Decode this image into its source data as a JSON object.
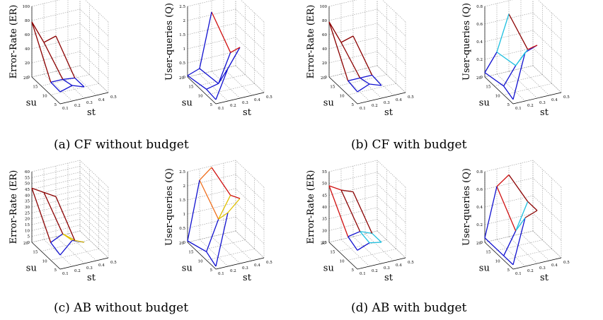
{
  "figure": {
    "captions": [
      "(a) CF without budget",
      "(b) CF with budget",
      "(c) AB without budget",
      "(d) AB with budget"
    ]
  },
  "chart_data": [
    {
      "type": "surface3d",
      "panel": "a",
      "metric": "er",
      "zlabel": "Error-Rate (ER)",
      "xlabel": "st",
      "ylabel": "su",
      "zlim": [
        0,
        100
      ],
      "zticks": [
        "0",
        "20",
        "40",
        "60",
        "80",
        "100"
      ],
      "xticks": [
        "0.1",
        "0.2",
        "0.3",
        "0.4",
        "0.5"
      ],
      "yticks": [
        "5",
        "10",
        "15",
        "20"
      ],
      "st": [
        0.1,
        0.2,
        0.3
      ],
      "su": [
        5,
        10,
        20
      ],
      "z": [
        [
          17,
          22,
          16
        ],
        [
          18,
          18,
          16
        ],
        [
          78,
          45,
          50
        ]
      ],
      "colors": [
        [
          "#1010d0",
          "#1010d0",
          "#1010d0"
        ],
        [
          "#1010d0",
          "#1010d0",
          "#1010d0"
        ],
        [
          "#8b0000",
          "#8b0000",
          "#8b0000"
        ]
      ]
    },
    {
      "type": "surface3d",
      "panel": "a",
      "metric": "q",
      "zlabel": "User-queries (Q)",
      "xlabel": "st",
      "ylabel": "su",
      "zlim": [
        0,
        2.5
      ],
      "zticks": [
        "0",
        "0.5",
        "1",
        "1.5",
        "2",
        "2.5"
      ],
      "xticks": [
        "0.1",
        "0.2",
        "0.3",
        "0.4",
        "0.5"
      ],
      "yticks": [
        "5",
        "10",
        "15",
        "20"
      ],
      "st": [
        0.1,
        0.2,
        0.3
      ],
      "su": [
        5,
        10,
        20
      ],
      "z": [
        [
          0.15,
          1.15,
          1.8
        ],
        [
          0.2,
          0.3,
          1.3
        ],
        [
          0.05,
          0.2,
          2.1
        ]
      ],
      "colors": [
        [
          "#1010d0",
          "#1010d0",
          "#d01010"
        ],
        [
          "#1010d0",
          "#1010d0",
          "#d01010"
        ],
        [
          "#1010d0",
          "#1010d0",
          "#d01010"
        ]
      ]
    },
    {
      "type": "surface3d",
      "panel": "b",
      "metric": "er",
      "zlabel": "Error-Rate (ER)",
      "xlabel": "st",
      "ylabel": "su",
      "zlim": [
        0,
        100
      ],
      "zticks": [
        "0",
        "20",
        "40",
        "60",
        "80",
        "100"
      ],
      "xticks": [
        "0.1",
        "0.2",
        "0.3",
        "0.4",
        "0.5"
      ],
      "yticks": [
        "5",
        "10",
        "15",
        "20"
      ],
      "st": [
        0.1,
        0.2,
        0.3
      ],
      "su": [
        5,
        10,
        20
      ],
      "z": [
        [
          17,
          24,
          18
        ],
        [
          20,
          20,
          20
        ],
        [
          78,
          45,
          50
        ]
      ],
      "colors": [
        [
          "#1010d0",
          "#1010d0",
          "#1010d0"
        ],
        [
          "#1010d0",
          "#1010d0",
          "#1010d0"
        ],
        [
          "#8b0000",
          "#8b0000",
          "#8b0000"
        ]
      ]
    },
    {
      "type": "surface3d",
      "panel": "b",
      "metric": "q",
      "zlabel": "User-queries (Q)",
      "xlabel": "st",
      "ylabel": "su",
      "zlim": [
        0,
        0.8
      ],
      "zticks": [
        "0",
        "0.2",
        "0.4",
        "0.6",
        "0.8"
      ],
      "xticks": [
        "0.1",
        "0.2",
        "0.3",
        "0.4",
        "0.5"
      ],
      "yticks": [
        "5",
        "10",
        "15",
        "20"
      ],
      "st": [
        0.1,
        0.2,
        0.3
      ],
      "su": [
        5,
        10,
        20
      ],
      "z": [
        [
          0.05,
          0.55,
          0.6
        ],
        [
          0.1,
          0.3,
          0.45
        ],
        [
          0.05,
          0.25,
          0.65
        ]
      ],
      "colors": [
        [
          "#1010d0",
          "#1010d0",
          "#d01010"
        ],
        [
          "#1010d0",
          "#20c0e0",
          "#d01010"
        ],
        [
          "#1010d0",
          "#20c0e0",
          "#8b0000"
        ]
      ]
    },
    {
      "type": "surface3d",
      "panel": "c",
      "metric": "er",
      "zlabel": "Error-Rate (ER)",
      "xlabel": "st",
      "ylabel": "su",
      "zlim": [
        0,
        60
      ],
      "zticks": [
        "0",
        "5",
        "10",
        "15",
        "20",
        "25",
        "30",
        "35",
        "40",
        "45",
        "50",
        "55",
        "60"
      ],
      "xticks": [
        "0.1",
        "0.2",
        "0.3",
        "0.4",
        "0.5"
      ],
      "yticks": [
        "5",
        "10",
        "15",
        "20"
      ],
      "st": [
        0.1,
        0.2,
        0.3
      ],
      "su": [
        5,
        10,
        20
      ],
      "z": [
        [
          12,
          22,
          18
        ],
        [
          15,
          20,
          12
        ],
        [
          46,
          40,
          34
        ]
      ],
      "colors": [
        [
          "#1010d0",
          "#1010d0",
          "#1010d0"
        ],
        [
          "#1010d0",
          "#e0c000",
          "#e0c000"
        ],
        [
          "#8b0000",
          "#8b0000",
          "#8b0000"
        ]
      ]
    },
    {
      "type": "surface3d",
      "panel": "c",
      "metric": "q",
      "zlabel": "User-queries (Q)",
      "xlabel": "st",
      "ylabel": "su",
      "zlim": [
        0,
        2.5
      ],
      "zticks": [
        "0",
        "0.5",
        "1",
        "1.5",
        "2",
        "2.5"
      ],
      "xticks": [
        "0.1",
        "0.2",
        "0.3",
        "0.4",
        "0.5"
      ],
      "yticks": [
        "5",
        "10",
        "15",
        "20"
      ],
      "st": [
        0.1,
        0.2,
        0.3
      ],
      "su": [
        5,
        10,
        20
      ],
      "z": [
        [
          0.1,
          1.9,
          2.3
        ],
        [
          0.3,
          1.35,
          2.1
        ],
        [
          0.05,
          2.1,
          2.45
        ]
      ],
      "colors": [
        [
          "#1010d0",
          "#e0c000",
          "#d01010"
        ],
        [
          "#1010d0",
          "#e0c000",
          "#d01010"
        ],
        [
          "#1010d0",
          "#f07020",
          "#d01010"
        ]
      ]
    },
    {
      "type": "surface3d",
      "panel": "d",
      "metric": "er",
      "zlabel": "Error-Rate (ER)",
      "xlabel": "st",
      "ylabel": "su",
      "zlim": [
        25,
        55
      ],
      "zticks": [
        "25",
        "30",
        "35",
        "40",
        "45",
        "50",
        "55"
      ],
      "xticks": [
        "0.1",
        "0.2",
        "0.3",
        "0.4",
        "0.5"
      ],
      "yticks": [
        "5",
        "10",
        "15",
        "20"
      ],
      "st": [
        0.1,
        0.2,
        0.3
      ],
      "su": [
        5,
        10,
        20
      ],
      "z": [
        [
          33,
          35,
          34
        ],
        [
          35,
          36,
          34
        ],
        [
          49,
          46,
          44
        ]
      ],
      "colors": [
        [
          "#1010d0",
          "#20c0e0",
          "#1010d0"
        ],
        [
          "#1010d0",
          "#20c0e0",
          "#20c0e0"
        ],
        [
          "#d01010",
          "#8b0000",
          "#8b0000"
        ]
      ]
    },
    {
      "type": "surface3d",
      "panel": "d",
      "metric": "q",
      "zlabel": "User-queries (Q)",
      "xlabel": "st",
      "ylabel": "su",
      "zlim": [
        0,
        0.8
      ],
      "zticks": [
        "0",
        "0.2",
        "0.4",
        "0.6",
        "0.8"
      ],
      "xticks": [
        "0.1",
        "0.2",
        "0.3",
        "0.4",
        "0.5"
      ],
      "yticks": [
        "5",
        "10",
        "15",
        "20"
      ],
      "st": [
        0.1,
        0.2,
        0.3
      ],
      "su": [
        5,
        10,
        20
      ],
      "z": [
        [
          0.05,
          0.55,
          0.6
        ],
        [
          0.05,
          0.3,
          0.6
        ],
        [
          0.05,
          0.6,
          0.7
        ]
      ],
      "colors": [
        [
          "#1010d0",
          "#8b0000",
          "#d01010"
        ],
        [
          "#1010d0",
          "#20c0e0",
          "#8b0000"
        ],
        [
          "#1010d0",
          "#d01010",
          "#8b0000"
        ]
      ]
    }
  ]
}
